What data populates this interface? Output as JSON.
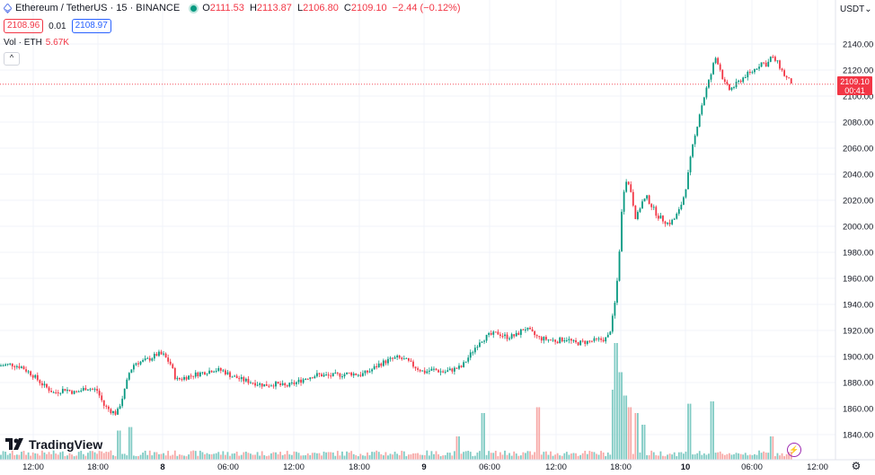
{
  "legend": {
    "symbol": "Ethereum / TetherUS · 15 · BINANCE",
    "ohlc": {
      "o_label": "O",
      "o": "2111.53",
      "h_label": "H",
      "h": "2113.87",
      "l_label": "L",
      "l": "2106.80",
      "c_label": "C",
      "c": "2109.10",
      "change": "−2.44 (−0.12%)"
    },
    "sell_price": "2108.96",
    "spread": "0.01",
    "buy_price": "2108.97",
    "volume_label": "Vol · ETH",
    "volume_value": "5.67K",
    "collapse_glyph": "^"
  },
  "price_scale": {
    "currency": "USDT",
    "last_price": "2109.10",
    "countdown": "00:41"
  },
  "brand": "TradingView",
  "icons": {
    "bolt": "lightning-icon",
    "settings": "gear-icon",
    "brand": "tradingview-logo"
  },
  "colors": {
    "up": "#089981",
    "down": "#f23645",
    "vol_up": "#80cbc4",
    "vol_down": "#f7a9a7",
    "grid": "#f0f3fa"
  },
  "chart_data": {
    "type": "candlestick",
    "title": "Ethereum / TetherUS · 15 · BINANCE",
    "y_ticks": [
      1840,
      1860,
      1880,
      1900,
      1920,
      1940,
      1960,
      1980,
      2000,
      2020,
      2040,
      2060,
      2080,
      2100,
      2120,
      2140
    ],
    "x_ticks": [
      "12:00",
      "18:00",
      "8",
      "06:00",
      "12:00",
      "18:00",
      "9",
      "06:00",
      "12:00",
      "18:00",
      "10",
      "06:00",
      "12:00"
    ],
    "ylim": [
      1832,
      2150
    ],
    "last_price": 2109.1,
    "grid": true,
    "close_path": [
      [
        0,
        1893
      ],
      [
        12,
        1894
      ],
      [
        24,
        1892
      ],
      [
        36,
        1886
      ],
      [
        48,
        1878
      ],
      [
        60,
        1872
      ],
      [
        72,
        1875
      ],
      [
        84,
        1872
      ],
      [
        96,
        1876
      ],
      [
        108,
        1874
      ],
      [
        116,
        1862
      ],
      [
        124,
        1858
      ],
      [
        130,
        1856
      ],
      [
        138,
        1872
      ],
      [
        144,
        1888
      ],
      [
        150,
        1895
      ],
      [
        158,
        1896
      ],
      [
        166,
        1898
      ],
      [
        176,
        1902
      ],
      [
        182,
        1901
      ],
      [
        190,
        1894
      ],
      [
        196,
        1882
      ],
      [
        206,
        1884
      ],
      [
        216,
        1886
      ],
      [
        228,
        1888
      ],
      [
        238,
        1890
      ],
      [
        248,
        1889
      ],
      [
        258,
        1885
      ],
      [
        270,
        1882
      ],
      [
        282,
        1880
      ],
      [
        294,
        1878
      ],
      [
        306,
        1879
      ],
      [
        318,
        1877
      ],
      [
        330,
        1880
      ],
      [
        342,
        1884
      ],
      [
        354,
        1886
      ],
      [
        366,
        1885
      ],
      [
        378,
        1886
      ],
      [
        390,
        1887
      ],
      [
        402,
        1886
      ],
      [
        412,
        1889
      ],
      [
        422,
        1894
      ],
      [
        432,
        1897
      ],
      [
        442,
        1899
      ],
      [
        452,
        1897
      ],
      [
        462,
        1892
      ],
      [
        472,
        1888
      ],
      [
        482,
        1890
      ],
      [
        494,
        1888
      ],
      [
        504,
        1890
      ],
      [
        514,
        1892
      ],
      [
        524,
        1902
      ],
      [
        534,
        1912
      ],
      [
        544,
        1916
      ],
      [
        554,
        1918
      ],
      [
        564,
        1915
      ],
      [
        574,
        1916
      ],
      [
        584,
        1922
      ],
      [
        592,
        1918
      ],
      [
        600,
        1914
      ],
      [
        610,
        1913
      ],
      [
        620,
        1912
      ],
      [
        630,
        1914
      ],
      [
        640,
        1910
      ],
      [
        650,
        1911
      ],
      [
        660,
        1912
      ],
      [
        670,
        1913
      ],
      [
        676,
        1914
      ],
      [
        680,
        1922
      ],
      [
        684,
        1938
      ],
      [
        688,
        1965
      ],
      [
        692,
        2010
      ],
      [
        696,
        2038
      ],
      [
        702,
        2028
      ],
      [
        708,
        2005
      ],
      [
        714,
        2018
      ],
      [
        720,
        2022
      ],
      [
        726,
        2015
      ],
      [
        732,
        2008
      ],
      [
        738,
        2005
      ],
      [
        744,
        2002
      ],
      [
        750,
        2005
      ],
      [
        756,
        2012
      ],
      [
        762,
        2025
      ],
      [
        766,
        2040
      ],
      [
        770,
        2058
      ],
      [
        774,
        2070
      ],
      [
        778,
        2085
      ],
      [
        782,
        2095
      ],
      [
        786,
        2105
      ],
      [
        792,
        2118
      ],
      [
        796,
        2130
      ],
      [
        800,
        2125
      ],
      [
        806,
        2110
      ],
      [
        812,
        2105
      ],
      [
        818,
        2108
      ],
      [
        824,
        2112
      ],
      [
        830,
        2116
      ],
      [
        836,
        2118
      ],
      [
        842,
        2122
      ],
      [
        848,
        2126
      ],
      [
        854,
        2124
      ],
      [
        858,
        2130
      ],
      [
        862,
        2128
      ],
      [
        866,
        2125
      ],
      [
        870,
        2120
      ],
      [
        874,
        2115
      ],
      [
        878,
        2112
      ],
      [
        882,
        2110
      ]
    ],
    "volume_spikes": [
      [
        132,
        0.25
      ],
      [
        146,
        0.28
      ],
      [
        510,
        0.2
      ],
      [
        538,
        0.4
      ],
      [
        600,
        0.45
      ],
      [
        682,
        0.6
      ],
      [
        686,
        1.0
      ],
      [
        690,
        0.75
      ],
      [
        696,
        0.55
      ],
      [
        702,
        0.45
      ],
      [
        708,
        0.4
      ],
      [
        716,
        0.3
      ],
      [
        766,
        0.48
      ],
      [
        794,
        0.5
      ],
      [
        860,
        0.2
      ]
    ]
  }
}
